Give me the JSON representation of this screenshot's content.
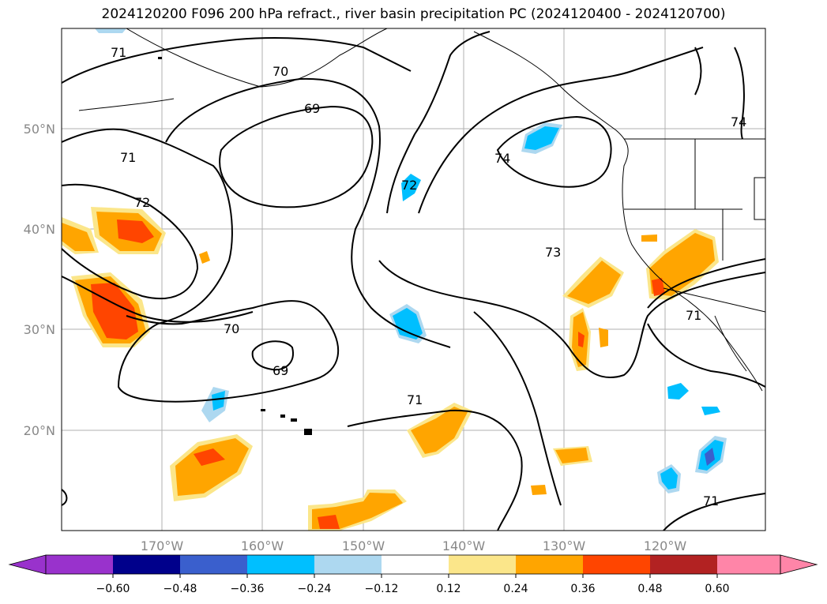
{
  "title": "2024120200 F096 200 hPa refract., river basin precipitation PC (2024120400 - 2024120700)",
  "map": {
    "lon_ticks": [
      "170°W",
      "160°W",
      "150°W",
      "140°W",
      "130°W",
      "120°W"
    ],
    "lat_ticks": [
      "50°N",
      "40°N",
      "30°N",
      "20°N"
    ],
    "contour_labels": [
      "71",
      "70",
      "69",
      "71",
      "72",
      "70",
      "69",
      "72",
      "74",
      "73",
      "71",
      "74",
      "71",
      "71"
    ]
  },
  "colorbar": {
    "ticks": [
      "−0.60",
      "−0.48",
      "−0.36",
      "−0.24",
      "−0.12",
      "0.12",
      "0.24",
      "0.36",
      "0.48",
      "0.60"
    ],
    "colors": [
      "#9932cc",
      "#00008b",
      "#3a5fcd",
      "#00bfff",
      "#add8f0",
      "#ffffff",
      "#fbe68a",
      "#ffa500",
      "#ff4500",
      "#b22222",
      "#ff85a8"
    ]
  }
}
